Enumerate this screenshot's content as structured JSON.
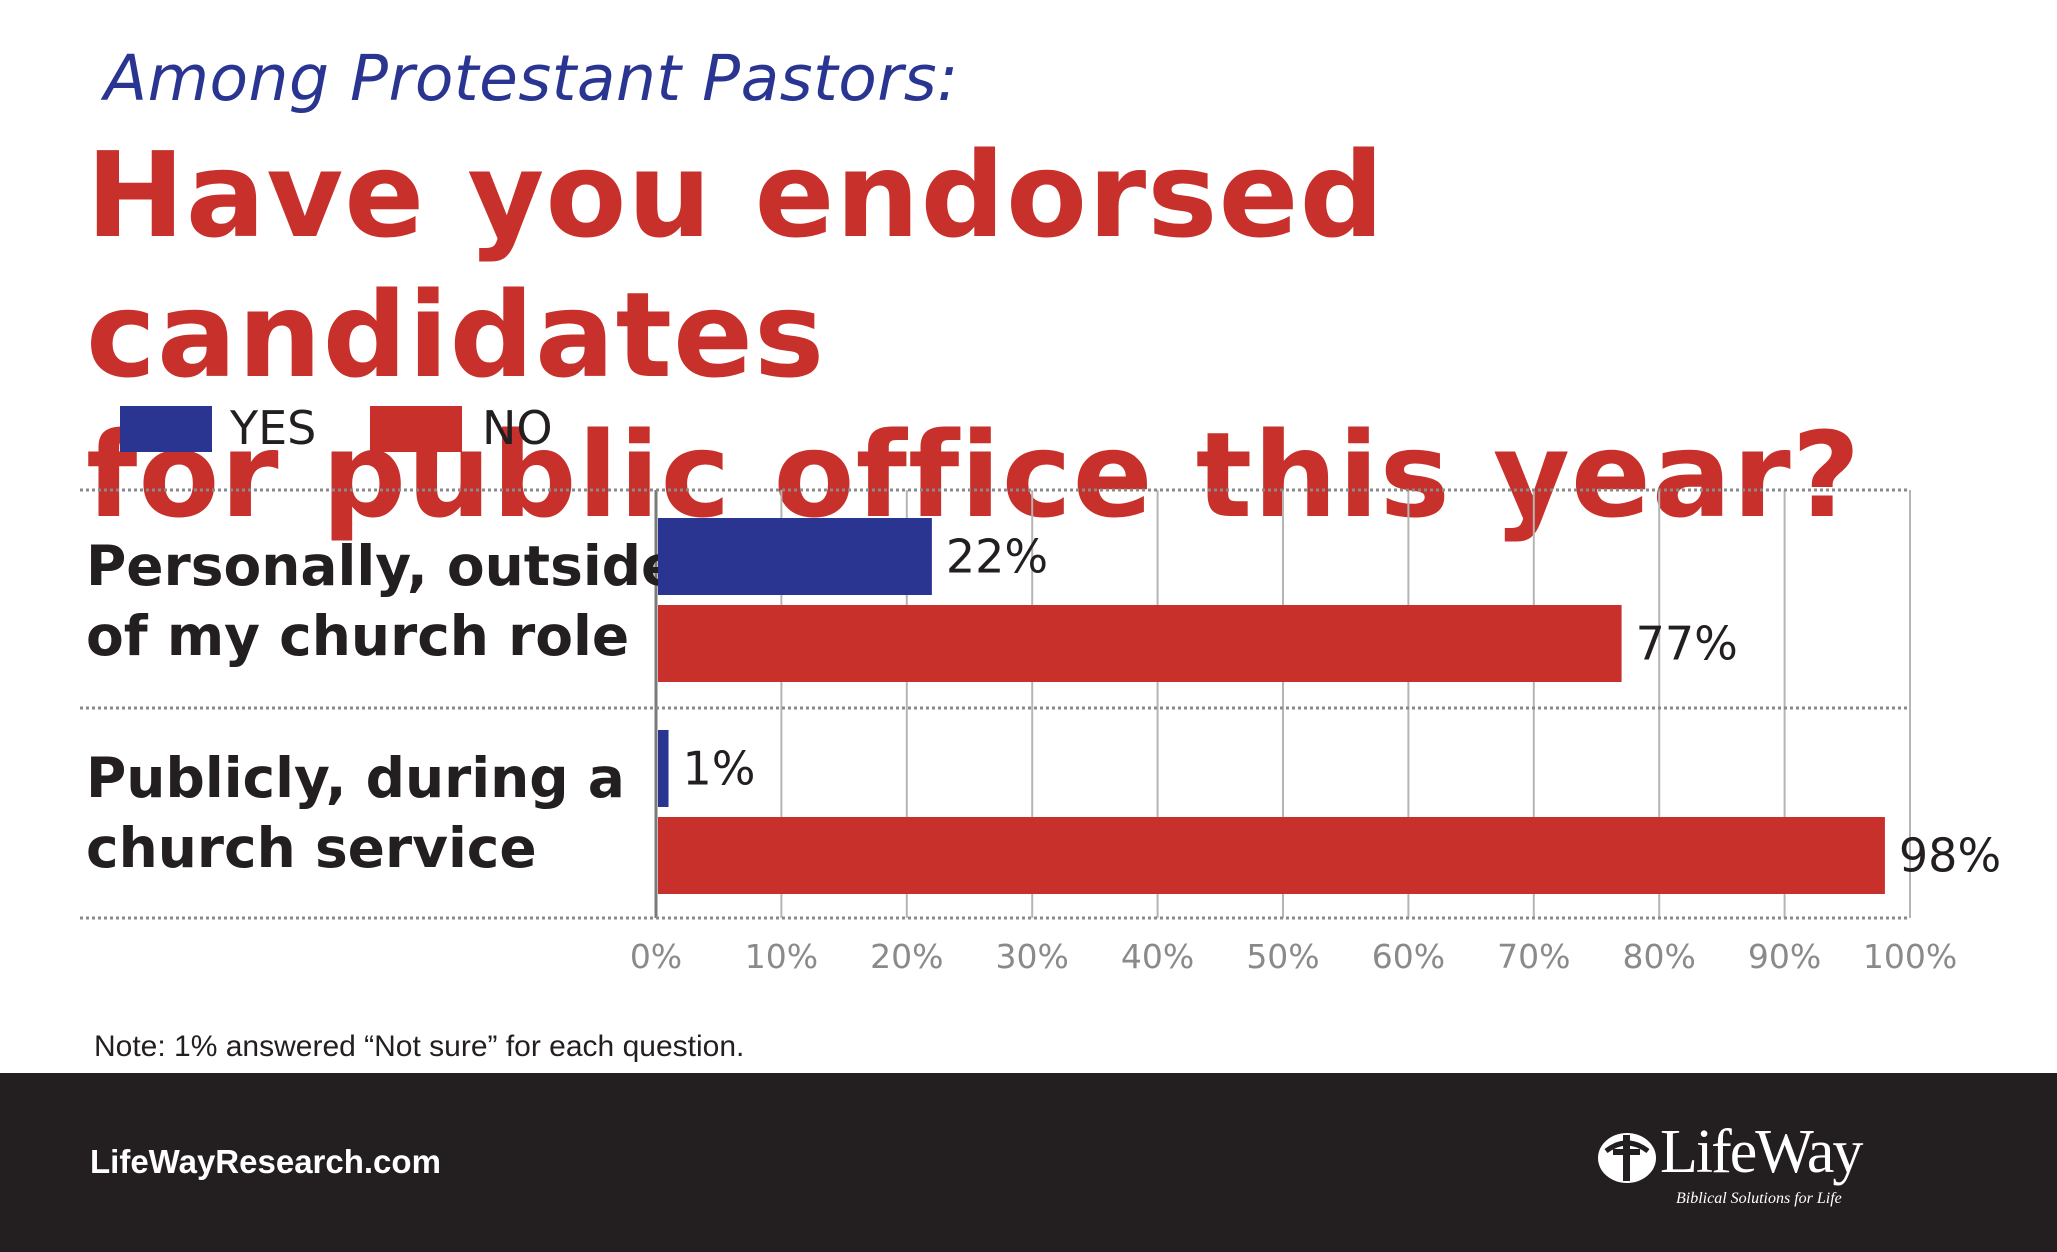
{
  "subtitle": "Among Protestant Pastors:",
  "title_line1": "Have you endorsed candidates",
  "title_line2": "for public office this year?",
  "legend": [
    {
      "label": "YES",
      "color": "#2a3592"
    },
    {
      "label": "NO",
      "color": "#c8302b"
    }
  ],
  "chart_data": {
    "type": "bar",
    "orientation": "horizontal",
    "categories": [
      [
        "Personally, outside",
        "of my church role"
      ],
      [
        "Publicly, during a",
        "church service"
      ]
    ],
    "series": [
      {
        "name": "YES",
        "values": [
          22,
          1
        ],
        "color": "#2a3592"
      },
      {
        "name": "NO",
        "values": [
          77,
          98
        ],
        "color": "#c8302b"
      }
    ],
    "value_labels": [
      [
        "22%",
        "1%"
      ],
      [
        "77%",
        "98%"
      ]
    ],
    "xlim": [
      0,
      100
    ],
    "ticks": [
      "0%",
      "10%",
      "20%",
      "30%",
      "40%",
      "50%",
      "60%",
      "70%",
      "80%",
      "90%",
      "100%"
    ],
    "grid": true,
    "legend_position": "top-left"
  },
  "note": "Note: 1% answered “Not sure” for each question.",
  "footer": {
    "site": "LifeWayResearch.com",
    "logo_name": "LifeWay",
    "logo_tagline": "Biblical Solutions for Life"
  }
}
